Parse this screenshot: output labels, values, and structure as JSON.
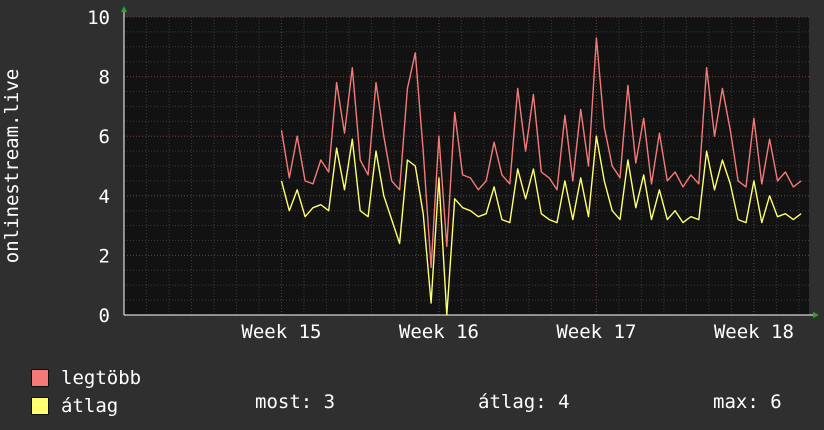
{
  "chart_data": {
    "type": "line",
    "ylabel": "onlinestream.live",
    "ylim": [
      0,
      10
    ],
    "yticks": [
      0,
      2,
      4,
      6,
      8,
      10
    ],
    "xlim": [
      14.0,
      18.35
    ],
    "xticks": [
      {
        "label": "Week 15",
        "value": 15
      },
      {
        "label": "Week 16",
        "value": 16
      },
      {
        "label": "Week 17",
        "value": 17
      },
      {
        "label": "Week 18",
        "value": 18
      }
    ],
    "grid": true,
    "legend": "bottom-left",
    "series": [
      {
        "name": "legtöbb",
        "color": "#f47a7a",
        "x": [
          15.0,
          15.05,
          15.1,
          15.15,
          15.2,
          15.25,
          15.3,
          15.35,
          15.4,
          15.45,
          15.5,
          15.55,
          15.6,
          15.65,
          15.7,
          15.75,
          15.8,
          15.85,
          15.9,
          15.95,
          16.0,
          16.05,
          16.1,
          16.15,
          16.2,
          16.25,
          16.3,
          16.35,
          16.4,
          16.45,
          16.5,
          16.55,
          16.6,
          16.65,
          16.7,
          16.75,
          16.8,
          16.85,
          16.9,
          16.95,
          17.0,
          17.05,
          17.1,
          17.15,
          17.2,
          17.25,
          17.3,
          17.35,
          17.4,
          17.45,
          17.5,
          17.55,
          17.6,
          17.65,
          17.7,
          17.75,
          17.8,
          17.85,
          17.9,
          17.95,
          18.0,
          18.05,
          18.1,
          18.15,
          18.2,
          18.25,
          18.3
        ],
        "y": [
          6.2,
          4.6,
          6.0,
          4.5,
          4.4,
          5.2,
          4.8,
          7.8,
          6.1,
          8.3,
          5.2,
          4.7,
          7.8,
          6.0,
          4.5,
          4.2,
          7.6,
          8.8,
          5.5,
          1.6,
          6.0,
          2.3,
          6.8,
          4.7,
          4.6,
          4.2,
          4.5,
          5.8,
          4.7,
          4.4,
          7.6,
          5.5,
          7.4,
          4.8,
          4.6,
          4.2,
          6.7,
          4.5,
          6.9,
          5.0,
          9.3,
          6.3,
          5.0,
          4.6,
          7.7,
          5.1,
          6.6,
          4.4,
          6.1,
          4.5,
          4.8,
          4.3,
          4.7,
          4.4,
          8.3,
          6.0,
          7.6,
          6.2,
          4.5,
          4.3,
          6.6,
          4.4,
          5.9,
          4.5,
          4.8,
          4.3,
          4.5
        ]
      },
      {
        "name": "átlag",
        "color": "#ffff70",
        "x": [
          15.0,
          15.05,
          15.1,
          15.15,
          15.2,
          15.25,
          15.3,
          15.35,
          15.4,
          15.45,
          15.5,
          15.55,
          15.6,
          15.65,
          15.7,
          15.75,
          15.8,
          15.85,
          15.9,
          15.95,
          16.0,
          16.05,
          16.1,
          16.15,
          16.2,
          16.25,
          16.3,
          16.35,
          16.4,
          16.45,
          16.5,
          16.55,
          16.6,
          16.65,
          16.7,
          16.75,
          16.8,
          16.85,
          16.9,
          16.95,
          17.0,
          17.05,
          17.1,
          17.15,
          17.2,
          17.25,
          17.3,
          17.35,
          17.4,
          17.45,
          17.5,
          17.55,
          17.6,
          17.65,
          17.7,
          17.75,
          17.8,
          17.85,
          17.9,
          17.95,
          18.0,
          18.05,
          18.1,
          18.15,
          18.2,
          18.25,
          18.3
        ],
        "y": [
          4.5,
          3.5,
          4.2,
          3.3,
          3.6,
          3.7,
          3.5,
          5.6,
          4.2,
          5.9,
          3.5,
          3.3,
          5.5,
          4.0,
          3.2,
          2.4,
          5.2,
          5.0,
          3.4,
          0.4,
          4.6,
          0.0,
          3.9,
          3.6,
          3.5,
          3.3,
          3.4,
          4.3,
          3.2,
          3.1,
          4.9,
          3.9,
          4.9,
          3.4,
          3.2,
          3.1,
          4.5,
          3.2,
          4.6,
          3.3,
          6.0,
          4.5,
          3.5,
          3.2,
          5.2,
          3.6,
          4.7,
          3.2,
          4.2,
          3.2,
          3.5,
          3.1,
          3.3,
          3.2,
          5.5,
          4.2,
          5.2,
          4.4,
          3.2,
          3.1,
          4.5,
          3.1,
          4.0,
          3.3,
          3.4,
          3.2,
          3.4
        ]
      }
    ]
  },
  "stats": {
    "now": "most: 3",
    "avg": "átlag: 4",
    "max": "max: 6"
  }
}
